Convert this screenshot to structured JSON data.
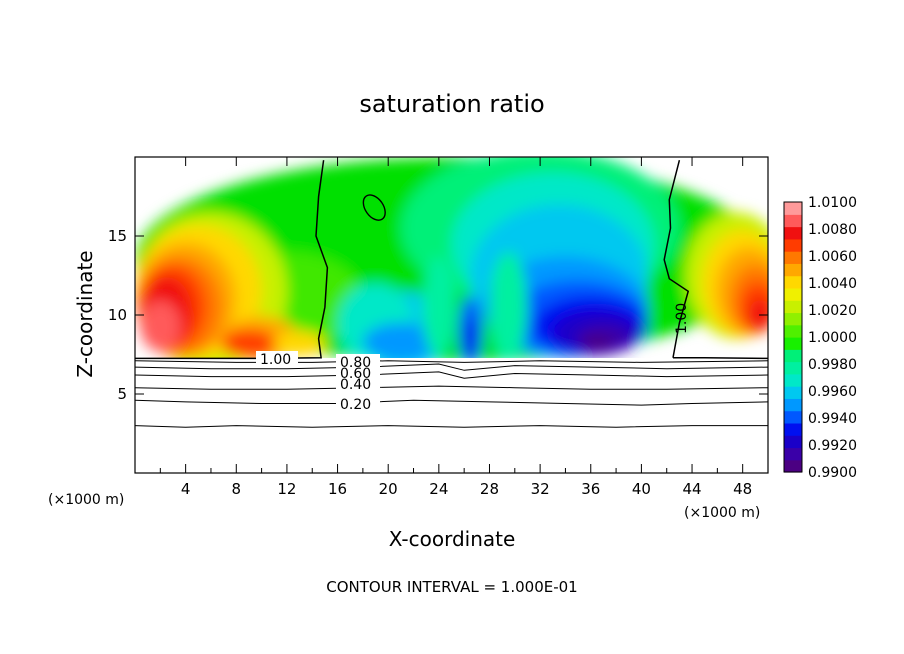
{
  "chart_data": {
    "type": "contour",
    "title": "saturation ratio",
    "xlabel": "X-coordinate",
    "ylabel": "Z-coordinate",
    "x_unit": "(×1000 m)",
    "z_unit": "(×1000 m)",
    "xlim": [
      0,
      50
    ],
    "ylim": [
      0,
      20
    ],
    "x_ticks": [
      4,
      8,
      12,
      16,
      20,
      24,
      28,
      32,
      36,
      40,
      44,
      48
    ],
    "y_ticks": [
      5,
      10,
      15
    ],
    "note": "CONTOUR INTERVAL = 1.000E-01",
    "colorbar": {
      "labels": [
        "1.0100",
        "1.0080",
        "1.0060",
        "1.0040",
        "1.0020",
        "1.0000",
        "0.9980",
        "0.9960",
        "0.9940",
        "0.9920",
        "0.9900"
      ],
      "colors": [
        "#4b0082",
        "#3a00a8",
        "#1a00c8",
        "#0010f0",
        "#0058ff",
        "#0098ff",
        "#00c8f0",
        "#00e8c8",
        "#00f0a0",
        "#00f078",
        "#18f000",
        "#50f000",
        "#90f000",
        "#c8f000",
        "#f0f000",
        "#ffd800",
        "#ffa800",
        "#ff7800",
        "#ff3c00",
        "#f01010",
        "#ff5a5a",
        "#ff9a9a"
      ]
    },
    "contour_labels": [
      "1.00",
      "0.80",
      "0.60",
      "0.40",
      "0.20",
      "1.00"
    ],
    "contour_lines": [
      {
        "level": 0.2,
        "points": [
          [
            0,
            4.6
          ],
          [
            4,
            4.5
          ],
          [
            10,
            4.4
          ],
          [
            16,
            4.4
          ],
          [
            22,
            4.6
          ],
          [
            28,
            4.5
          ],
          [
            34,
            4.4
          ],
          [
            40,
            4.3
          ],
          [
            44,
            4.4
          ],
          [
            50,
            4.5
          ]
        ]
      },
      {
        "level": 0.4,
        "points": [
          [
            0,
            5.4
          ],
          [
            6,
            5.3
          ],
          [
            12,
            5.3
          ],
          [
            18,
            5.4
          ],
          [
            24,
            5.5
          ],
          [
            30,
            5.4
          ],
          [
            36,
            5.3
          ],
          [
            42,
            5.3
          ],
          [
            50,
            5.4
          ]
        ]
      },
      {
        "level": 0.6,
        "points": [
          [
            0,
            6.2
          ],
          [
            6,
            6.1
          ],
          [
            12,
            6.1
          ],
          [
            18,
            6.2
          ],
          [
            24,
            6.4
          ],
          [
            26,
            6.0
          ],
          [
            30,
            6.3
          ],
          [
            36,
            6.2
          ],
          [
            42,
            6.1
          ],
          [
            50,
            6.2
          ]
        ]
      },
      {
        "level": 0.8,
        "points": [
          [
            0,
            6.7
          ],
          [
            6,
            6.6
          ],
          [
            12,
            6.6
          ],
          [
            18,
            6.7
          ],
          [
            24,
            6.9
          ],
          [
            26,
            6.5
          ],
          [
            30,
            6.8
          ],
          [
            36,
            6.7
          ],
          [
            42,
            6.6
          ],
          [
            50,
            6.7
          ]
        ]
      },
      {
        "level": 0.9,
        "points": [
          [
            0,
            7.1
          ],
          [
            8,
            7.0
          ],
          [
            14,
            7.0
          ],
          [
            20,
            7.1
          ],
          [
            26,
            7.0
          ],
          [
            32,
            7.1
          ],
          [
            40,
            7.0
          ],
          [
            50,
            7.1
          ]
        ]
      },
      {
        "level": 0.1,
        "points": [
          [
            0,
            3.0
          ],
          [
            4,
            2.9
          ],
          [
            8,
            3.0
          ],
          [
            14,
            2.9
          ],
          [
            20,
            3.0
          ],
          [
            26,
            2.9
          ],
          [
            32,
            3.0
          ],
          [
            38,
            2.9
          ],
          [
            44,
            3.0
          ],
          [
            50,
            3.0
          ]
        ]
      },
      {
        "level": 1.0,
        "points": [
          [
            0,
            7.25
          ],
          [
            10,
            7.25
          ],
          [
            14.7,
            7.3
          ],
          [
            14.5,
            8.5
          ],
          [
            15.0,
            10.5
          ],
          [
            15.2,
            13.0
          ],
          [
            14.3,
            15.0
          ],
          [
            14.5,
            17.5
          ],
          [
            14.9,
            19.8
          ]
        ]
      },
      {
        "level": 1.0,
        "points": [
          [
            42.5,
            7.3
          ],
          [
            43.0,
            9.5
          ],
          [
            43.7,
            11.5
          ],
          [
            42.2,
            12.3
          ],
          [
            41.8,
            13.5
          ],
          [
            42.3,
            15.5
          ],
          [
            42.2,
            17.3
          ],
          [
            43.0,
            19.8
          ]
        ]
      },
      {
        "level": 1.0,
        "points": [
          [
            42.5,
            7.3
          ],
          [
            45,
            7.3
          ],
          [
            50,
            7.25
          ]
        ]
      }
    ],
    "blobs": [
      {
        "color": "#00e000",
        "cx": 25,
        "cy": 13.5,
        "rx": 25,
        "ry": 6.5
      },
      {
        "color": "#40e800",
        "cx": 12,
        "cy": 11,
        "rx": 6,
        "ry": 3
      },
      {
        "color": "#c8f000",
        "cx": 6,
        "cy": 11.5,
        "rx": 6,
        "ry": 5
      },
      {
        "color": "#ffd800",
        "cx": 5,
        "cy": 11.5,
        "rx": 5,
        "ry": 4.2
      },
      {
        "color": "#ffa800",
        "cx": 4,
        "cy": 11,
        "rx": 4,
        "ry": 3.6
      },
      {
        "color": "#ff7800",
        "cx": 3.5,
        "cy": 10.5,
        "rx": 3.4,
        "ry": 3.2
      },
      {
        "color": "#ff3c00",
        "cx": 3,
        "cy": 10.5,
        "rx": 2.6,
        "ry": 2.6
      },
      {
        "color": "#f01010",
        "cx": 2.5,
        "cy": 10.2,
        "rx": 2.0,
        "ry": 2.2
      },
      {
        "color": "#ff5a5a",
        "cx": 2,
        "cy": 9.3,
        "rx": 1.6,
        "ry": 1.6
      },
      {
        "color": "#ffa800",
        "cx": 10,
        "cy": 8.5,
        "rx": 3,
        "ry": 1.4
      },
      {
        "color": "#ff3c00",
        "cx": 9,
        "cy": 8.2,
        "rx": 2.2,
        "ry": 0.9
      },
      {
        "color": "#ffd800",
        "cx": 13,
        "cy": 8.2,
        "rx": 2,
        "ry": 0.8
      },
      {
        "color": "#c8f000",
        "cx": 47.5,
        "cy": 12.5,
        "rx": 4,
        "ry": 4
      },
      {
        "color": "#ffd800",
        "cx": 48,
        "cy": 12,
        "rx": 3.2,
        "ry": 3.4
      },
      {
        "color": "#ffa800",
        "cx": 48.5,
        "cy": 11.5,
        "rx": 2.6,
        "ry": 2.8
      },
      {
        "color": "#ff7800",
        "cx": 49,
        "cy": 11,
        "rx": 2.0,
        "ry": 2.2
      },
      {
        "color": "#ff3c00",
        "cx": 49.2,
        "cy": 10.5,
        "rx": 1.4,
        "ry": 1.6
      },
      {
        "color": "#f01010",
        "cx": 49.4,
        "cy": 10,
        "rx": 0.9,
        "ry": 1.0
      },
      {
        "color": "#00f078",
        "cx": 32,
        "cy": 15.5,
        "rx": 11,
        "ry": 5
      },
      {
        "color": "#00e8c8",
        "cx": 33,
        "cy": 14.5,
        "rx": 8,
        "ry": 4.5
      },
      {
        "color": "#00c8f0",
        "cx": 33.5,
        "cy": 12.5,
        "rx": 7,
        "ry": 4.5
      },
      {
        "color": "#00c8f0",
        "cx": 21,
        "cy": 9,
        "rx": 4,
        "ry": 2.5
      },
      {
        "color": "#00e8c8",
        "cx": 19,
        "cy": 9.5,
        "rx": 3,
        "ry": 2.5
      },
      {
        "color": "#0098ff",
        "cx": 34,
        "cy": 10.5,
        "rx": 6.5,
        "ry": 3.2
      },
      {
        "color": "#0098ff",
        "cx": 21,
        "cy": 8.3,
        "rx": 3,
        "ry": 1.2
      },
      {
        "color": "#0058ff",
        "cx": 35,
        "cy": 9.8,
        "rx": 5.5,
        "ry": 2.4
      },
      {
        "color": "#0058ff",
        "cx": 26.5,
        "cy": 9.0,
        "rx": 0.9,
        "ry": 2.2
      },
      {
        "color": "#0010f0",
        "cx": 36,
        "cy": 9.3,
        "rx": 4.5,
        "ry": 1.9
      },
      {
        "color": "#0010f0",
        "cx": 26.5,
        "cy": 8.4,
        "rx": 0.6,
        "ry": 1.4
      },
      {
        "color": "#1a00c8",
        "cx": 36.5,
        "cy": 8.9,
        "rx": 3.5,
        "ry": 1.4
      },
      {
        "color": "#3a00a8",
        "cx": 37,
        "cy": 8.5,
        "rx": 2.2,
        "ry": 0.9
      },
      {
        "color": "#4b0082",
        "cx": 36.5,
        "cy": 8.2,
        "rx": 1.2,
        "ry": 0.5
      },
      {
        "color": "#00f0a0",
        "cx": 29.5,
        "cy": 10.5,
        "rx": 1.5,
        "ry": 3.5
      },
      {
        "color": "#00f0a0",
        "cx": 24,
        "cy": 10.5,
        "rx": 1.3,
        "ry": 3.2
      }
    ]
  }
}
